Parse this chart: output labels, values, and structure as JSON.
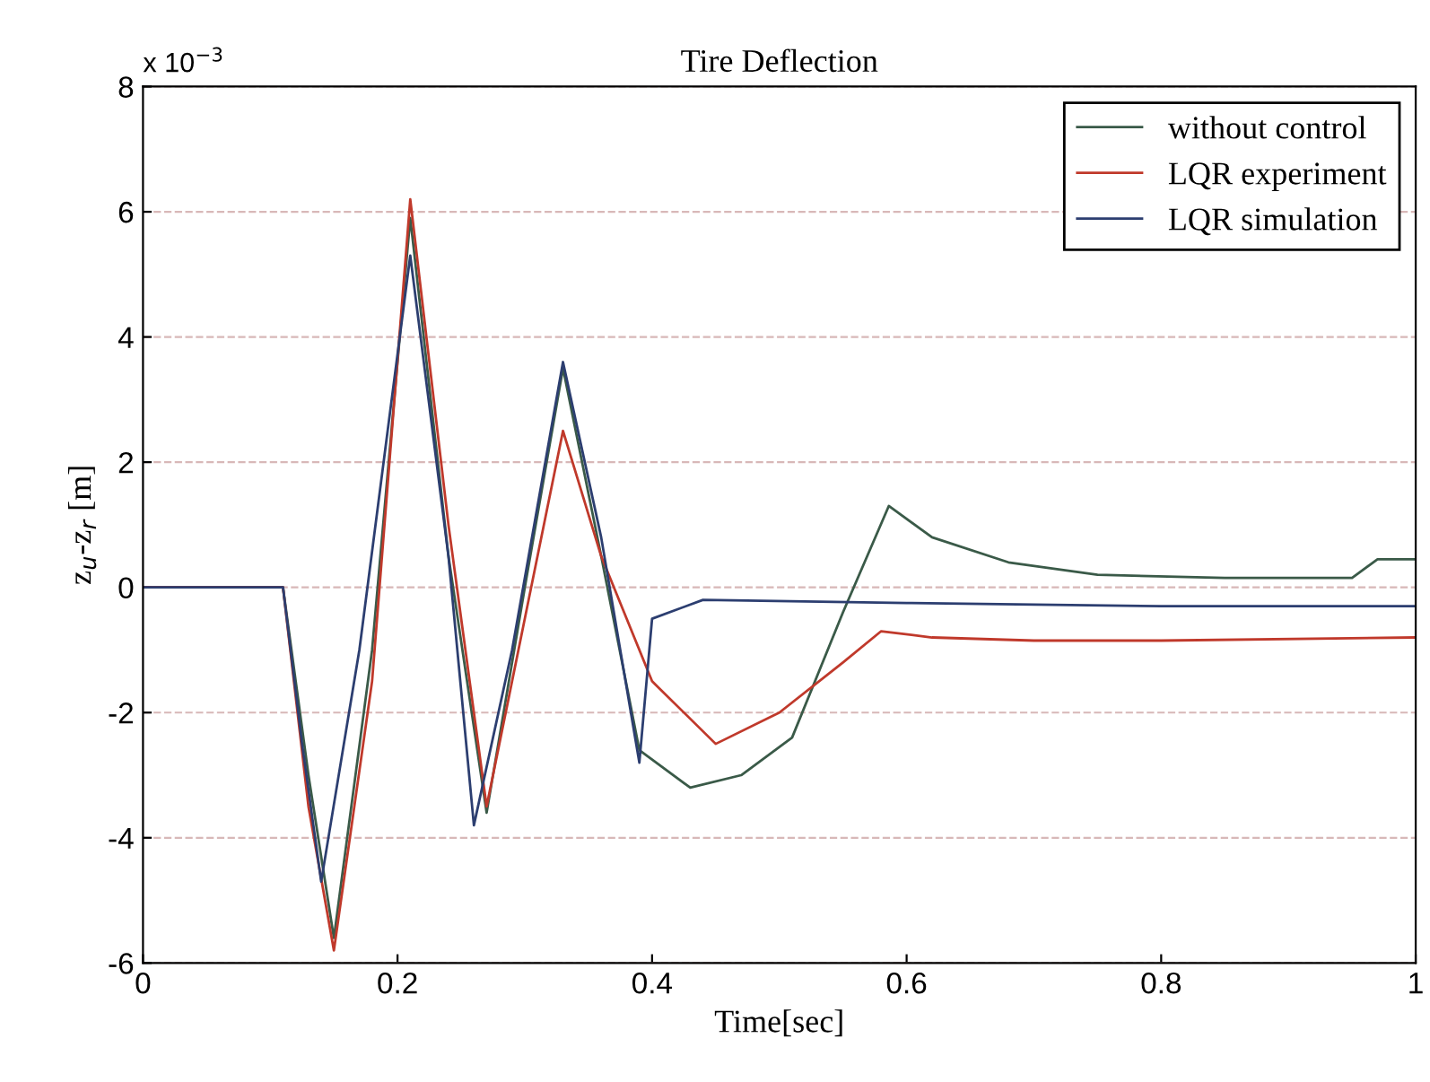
{
  "chart_data": {
    "type": "line",
    "title": "Tire Deflection",
    "xlabel": "Time[sec]",
    "ylabel": "z$_{u}$-z$_{r}$ [m]",
    "annotations": [
      "x 10$^{−3}$"
    ],
    "xlim": [
      0,
      1
    ],
    "ylim": [
      -6,
      8
    ],
    "xticks": [
      0,
      0.2,
      0.4,
      0.6,
      0.8,
      1
    ],
    "yticks": [
      -6,
      -4,
      -2,
      0,
      2,
      4,
      6,
      8
    ],
    "grid": "y",
    "legend": "top right",
    "line_style": "solid",
    "series": [
      {
        "name": "without control",
        "color": "#3a5a48",
        "x": [
          0,
          0.11,
          0.13,
          0.15,
          0.18,
          0.21,
          0.24,
          0.27,
          0.3,
          0.33,
          0.36,
          0.39,
          0.43,
          0.47,
          0.51,
          0.55,
          0.586,
          0.62,
          0.68,
          0.75,
          0.85,
          0.95,
          0.97,
          1
        ],
        "values": [
          0,
          0,
          -3.0,
          -5.6,
          -1.0,
          5.9,
          0.5,
          -3.6,
          0.0,
          3.5,
          0.5,
          -2.6,
          -3.2,
          -3.0,
          -2.4,
          -0.4,
          1.3,
          0.8,
          0.4,
          0.2,
          0.15,
          0.15,
          0.45,
          0.45
        ]
      },
      {
        "name": "LQR experiment",
        "color": "#c0392b",
        "x": [
          0,
          0.11,
          0.13,
          0.15,
          0.18,
          0.21,
          0.24,
          0.27,
          0.3,
          0.33,
          0.36,
          0.4,
          0.45,
          0.5,
          0.55,
          0.58,
          0.62,
          0.7,
          0.8,
          1
        ],
        "values": [
          0,
          0,
          -3.5,
          -5.8,
          -1.5,
          6.2,
          1.0,
          -3.5,
          -0.5,
          2.5,
          0.5,
          -1.5,
          -2.5,
          -2.0,
          -1.2,
          -0.7,
          -0.8,
          -0.85,
          -0.85,
          -0.8
        ]
      },
      {
        "name": "LQR simulation",
        "color": "#2c3e70",
        "x": [
          0,
          0.11,
          0.125,
          0.14,
          0.17,
          0.21,
          0.24,
          0.26,
          0.29,
          0.33,
          0.36,
          0.39,
          0.4,
          0.44,
          0.6,
          0.8,
          1
        ],
        "values": [
          0,
          0,
          -2.5,
          -4.7,
          -1.0,
          5.3,
          0.5,
          -3.8,
          -1.0,
          3.6,
          0.8,
          -2.8,
          -0.5,
          -0.2,
          -0.25,
          -0.3,
          -0.3
        ]
      }
    ]
  }
}
